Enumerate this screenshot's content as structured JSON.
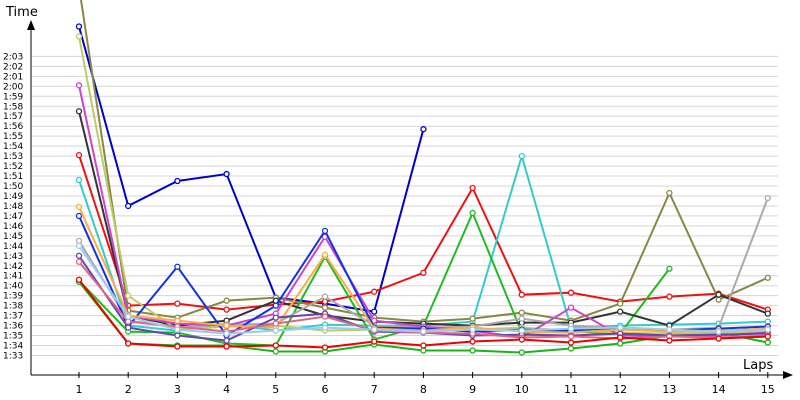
{
  "chart_data": {
    "type": "line",
    "xlabel": "Laps",
    "ylabel": "Time",
    "x": [
      1,
      2,
      3,
      4,
      5,
      6,
      7,
      8,
      9,
      10,
      11,
      12,
      13,
      14,
      15
    ],
    "y_tick_labels": [
      "1:33",
      "1:34",
      "1:35",
      "1:36",
      "1:37",
      "1:38",
      "1:39",
      "1:40",
      "1:41",
      "1:42",
      "1:43",
      "1:44",
      "1:45",
      "1:46",
      "1:47",
      "1:48",
      "1:49",
      "1:50",
      "1:51",
      "1:52",
      "1:53",
      "1:54",
      "1:55",
      "1:56",
      "1:57",
      "1:58",
      "1:59",
      "2:00",
      "2:01",
      "2:02",
      "2:03"
    ],
    "ylim_seconds": [
      93,
      123
    ],
    "grid": true,
    "series": [
      {
        "color": "#0000cc",
        "values": [
          126,
          108.0,
          110.5,
          111.2,
          98.8,
          98.2,
          97.4,
          115.7,
          null,
          null,
          null,
          null,
          null,
          null,
          null
        ]
      },
      {
        "color": "#ee1111",
        "values": [
          113.1,
          98.0,
          98.2,
          97.6,
          98.1,
          98.4,
          99.4,
          101.3,
          109.8,
          99.1,
          99.3,
          98.4,
          98.9,
          99.2,
          97.6
        ]
      },
      {
        "color": "#33cccc",
        "values": [
          110.6,
          96.0,
          95.5,
          96.2,
          95.5,
          96.1,
          96.0,
          96.0,
          96.4,
          113.0,
          95.8,
          96.0,
          96.1,
          96.2,
          96.4
        ]
      },
      {
        "color": "#888844",
        "values": [
          130,
          97.5,
          96.8,
          98.5,
          98.8,
          97.8,
          96.8,
          96.4,
          96.7,
          97.3,
          96.5,
          98.2,
          109.3,
          98.6,
          100.8
        ]
      },
      {
        "color": "#22bb22",
        "values": [
          100.5,
          95.4,
          95.3,
          94.2,
          94.0,
          102.9,
          94.6,
          96.0,
          107.3,
          95.3,
          95.4,
          95.2,
          101.7,
          null,
          null
        ]
      },
      {
        "color": "#18b418",
        "values": [
          100.4,
          94.2,
          94.0,
          94.0,
          93.4,
          93.4,
          94.1,
          93.5,
          93.5,
          93.3,
          93.7,
          94.2,
          95.0,
          95.3,
          94.3
        ]
      },
      {
        "color": "#333333",
        "values": [
          117.5,
          97.0,
          96.0,
          96.5,
          98.5,
          97.0,
          96.4,
          96.2,
          96.0,
          96.3,
          96.3,
          97.4,
          96.0,
          99.1,
          97.2
        ]
      },
      {
        "color": "#aaaaaa",
        "values": [
          104.5,
          96.5,
          95.8,
          96.1,
          96.2,
          98.9,
          96.0,
          95.8,
          95.9,
          96.7,
          96.0,
          95.8,
          95.6,
          95.8,
          108.8
        ]
      },
      {
        "color": "#bbcc66",
        "values": [
          125,
          99.0,
          95.6,
          95.9,
          96.0,
          95.5,
          95.6,
          95.4,
          95.6,
          95.8,
          95.5,
          95.3,
          95.2,
          95.3,
          95.4
        ]
      },
      {
        "color": "#cc44cc",
        "values": [
          120.1,
          97.0,
          96.2,
          96.0,
          97.2,
          104.9,
          96.5,
          95.9,
          95.5,
          94.8,
          97.8,
          95.0,
          94.9,
          95.0,
          95.3
        ]
      },
      {
        "color": "#1133dd",
        "values": [
          107.0,
          95.9,
          101.9,
          95.0,
          98.0,
          105.5,
          95.8,
          95.7,
          95.4,
          95.6,
          95.5,
          95.8,
          95.5,
          95.7,
          95.9
        ]
      },
      {
        "color": "#ffaa44",
        "values": [
          107.9,
          97.0,
          96.5,
          96.0,
          95.8,
          103.1,
          95.7,
          95.5,
          95.8,
          95.4,
          95.3,
          95.6,
          95.4,
          95.5,
          95.7
        ]
      },
      {
        "color": "#6644aa",
        "values": [
          103.0,
          95.8,
          95.0,
          94.5,
          96.8,
          97.2,
          95.4,
          95.3,
          95.0,
          95.1,
          95.0,
          95.2,
          95.0,
          95.1,
          95.2
        ]
      },
      {
        "color": "#dd6688",
        "values": [
          102.4,
          96.4,
          95.9,
          95.4,
          96.2,
          96.9,
          95.5,
          95.3,
          95.2,
          94.8,
          94.9,
          94.7,
          94.9,
          94.8,
          95.0
        ]
      },
      {
        "color": "#99ccee",
        "values": [
          104.0,
          96.9,
          95.6,
          95.2,
          95.5,
          95.8,
          95.6,
          95.4,
          95.6,
          95.5,
          95.7,
          95.8,
          95.6,
          95.4,
          95.6
        ]
      },
      {
        "color": "#ee0000",
        "values": [
          100.6,
          94.2,
          93.9,
          93.9,
          94.0,
          93.8,
          94.4,
          94.0,
          94.4,
          94.6,
          94.3,
          94.8,
          94.5,
          94.7,
          94.9
        ]
      }
    ]
  }
}
